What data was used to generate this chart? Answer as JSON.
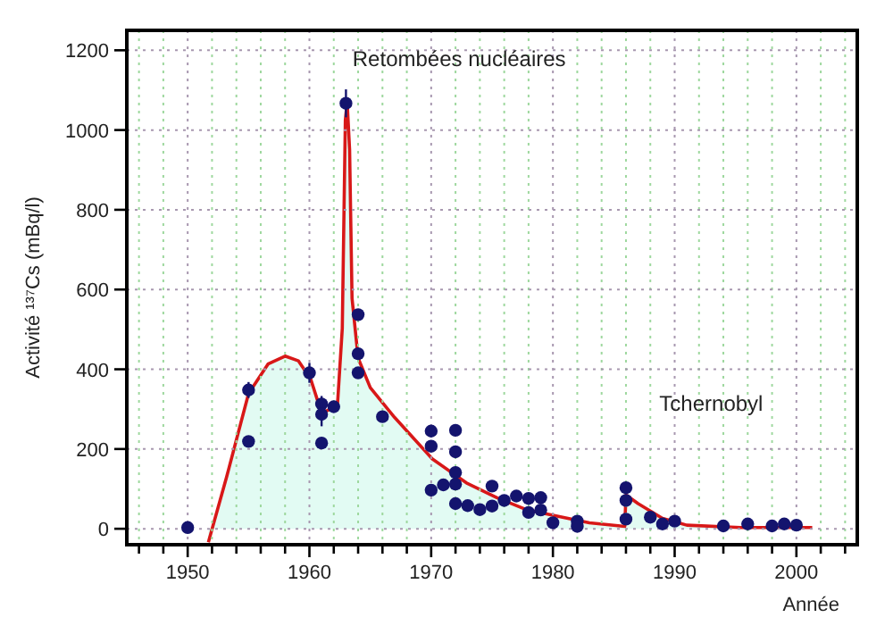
{
  "chart_data": {
    "type": "scatter",
    "xlabel": "Année",
    "ylabel": "Activité ¹³⁷Cs (mBq/l)",
    "xlim": [
      1945,
      2005
    ],
    "ylim": [
      -40,
      1250
    ],
    "xticks": [
      {
        "value": 1946,
        "label": null
      },
      {
        "value": 1948,
        "label": null
      },
      1950,
      {
        "value": 1952,
        "label": null
      },
      {
        "value": 1954,
        "label": null
      },
      {
        "value": 1956,
        "label": null
      },
      {
        "value": 1958,
        "label": null
      },
      1960,
      {
        "value": 1962,
        "label": null
      },
      {
        "value": 1964,
        "label": null
      },
      {
        "value": 1966,
        "label": null
      },
      {
        "value": 1968,
        "label": null
      },
      1970,
      {
        "value": 1972,
        "label": null
      },
      {
        "value": 1974,
        "label": null
      },
      {
        "value": 1976,
        "label": null
      },
      {
        "value": 1978,
        "label": null
      },
      1980,
      {
        "value": 1982,
        "label": null
      },
      {
        "value": 1984,
        "label": null
      },
      {
        "value": 1986,
        "label": null
      },
      {
        "value": 1988,
        "label": null
      },
      1990,
      {
        "value": 1992,
        "label": null
      },
      {
        "value": 1994,
        "label": null
      },
      {
        "value": 1996,
        "label": null
      },
      {
        "value": 1998,
        "label": null
      },
      2000,
      {
        "value": 2002,
        "label": null
      },
      {
        "value": 2004,
        "label": null
      }
    ],
    "yticks": [
      0,
      200,
      400,
      600,
      800,
      1000,
      1200
    ],
    "grid": true,
    "series": [
      {
        "type": "area",
        "color": "#d81818",
        "x": [
          1951.7,
          1953.2,
          1955,
          1956.6,
          1958,
          1959.1,
          1960.1,
          1960.8,
          1961.3,
          1962.3,
          1962.7,
          1962.95,
          1963.1,
          1963.3,
          1963.5,
          1964,
          1965,
          1967,
          1970.1,
          1972.9,
          1975.4,
          1977.8,
          1980,
          1983,
          1985.9,
          1986,
          1987,
          1989,
          1991,
          1995.4,
          2001.3
        ],
        "values": [
          -34,
          130,
          339,
          413,
          433,
          421,
          376,
          309,
          294,
          309,
          503,
          1025,
          1070,
          951,
          578,
          428,
          354,
          279,
          175,
          115,
          78,
          48,
          34,
          15,
          6,
          85,
          63,
          26,
          9,
          3,
          3
        ]
      },
      {
        "color": "#14146e",
        "marker": "circle",
        "x": [
          1950,
          1955,
          1955,
          1960,
          1961,
          1961,
          1961,
          1962,
          1963,
          1964,
          1964,
          1964,
          1966,
          1970,
          1970,
          1970,
          1971,
          1972,
          1972,
          1972,
          1972,
          1972,
          1973,
          1974,
          1975,
          1975,
          1976,
          1977,
          1978,
          1978,
          1979,
          1979,
          1980,
          1982,
          1982,
          1986,
          1986,
          1986,
          1988,
          1989,
          1990,
          1994,
          1996,
          1998,
          1999,
          2000
        ],
        "values": [
          3,
          348,
          219,
          391,
          313,
          287,
          215,
          306,
          1067,
          537,
          439,
          391,
          281,
          245,
          207,
          97,
          110,
          247,
          193,
          141,
          112,
          63,
          58,
          48,
          107,
          57,
          71,
          82,
          76,
          41,
          78,
          47,
          15,
          19,
          6,
          103,
          71,
          24,
          29,
          12,
          19,
          7,
          12,
          7,
          12,
          9
        ],
        "errors": [
          null,
          20,
          null,
          25,
          20,
          30,
          null,
          null,
          35,
          null,
          null,
          null,
          null,
          15,
          null,
          15,
          15,
          null,
          null,
          15,
          15,
          null,
          null,
          null,
          null,
          12,
          null,
          null,
          null,
          null,
          null,
          null,
          null,
          null,
          null,
          null,
          15,
          null,
          null,
          null,
          null,
          null,
          null,
          null,
          null,
          null
        ]
      }
    ],
    "annotations": [
      "Retombées nucléaires",
      "Tchernobyl"
    ]
  }
}
